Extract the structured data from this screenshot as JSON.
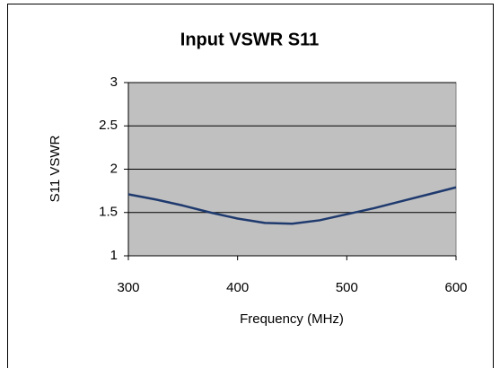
{
  "chart_data": {
    "type": "line",
    "title": "Input VSWR  S11",
    "x_label": "Frequency (MHz)",
    "y_label": "S11 VSWR",
    "x": [
      300,
      325,
      350,
      375,
      400,
      425,
      450,
      475,
      500,
      525,
      550,
      575,
      600
    ],
    "series": [
      {
        "name": "S11",
        "color": "#1f3a6e",
        "values": [
          1.71,
          1.65,
          1.58,
          1.5,
          1.43,
          1.38,
          1.37,
          1.41,
          1.48,
          1.55,
          1.63,
          1.71,
          1.79
        ]
      }
    ],
    "xlim": [
      300,
      600
    ],
    "xticks": [
      300,
      400,
      500,
      600
    ],
    "ylim": [
      1,
      3
    ],
    "yticks": [
      1,
      1.5,
      2,
      2.5,
      3
    ],
    "grid": true,
    "plot_background": "#c0c0c0"
  }
}
